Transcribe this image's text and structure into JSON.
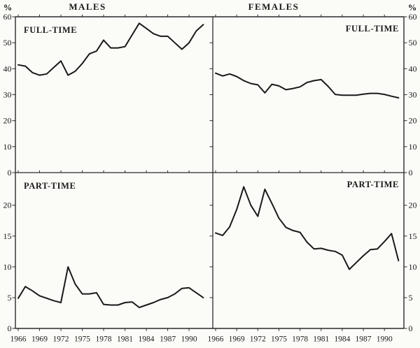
{
  "figure": {
    "unit_left": "%",
    "unit_right": "%",
    "column_titles": [
      "MALES",
      "FEMALES"
    ],
    "ink_color": "#1a1a1a",
    "axis_color": "#2b2b2b",
    "background_color": "#fbfbf8"
  },
  "chart_data": [
    {
      "id": "males-full-time",
      "type": "line",
      "column": "MALES",
      "label": "FULL-TIME",
      "label_corner": "top-left",
      "unit": "%",
      "ylim": [
        0,
        60
      ],
      "yticks": [
        0,
        10,
        20,
        30,
        40,
        50,
        60
      ],
      "xticks": [
        1966,
        1969,
        1972,
        1975,
        1978,
        1981,
        1984,
        1987,
        1990
      ],
      "years": [
        1966,
        1967,
        1968,
        1969,
        1970,
        1971,
        1972,
        1973,
        1974,
        1975,
        1976,
        1977,
        1978,
        1979,
        1980,
        1981,
        1982,
        1983,
        1984,
        1985,
        1986,
        1987,
        1988,
        1989,
        1990,
        1991,
        1992
      ],
      "values": [
        41.5,
        41,
        38.5,
        37.5,
        38,
        40.5,
        43,
        37.5,
        39,
        42,
        45.7,
        46.8,
        51,
        48,
        48,
        48.5,
        53,
        57.5,
        55.5,
        53.5,
        52.5,
        52.5,
        50,
        47.5,
        50,
        54.5,
        57
      ]
    },
    {
      "id": "females-full-time",
      "type": "line",
      "column": "FEMALES",
      "label": "FULL-TIME",
      "label_corner": "top-right",
      "unit": "%",
      "ylim": [
        0,
        60
      ],
      "yticks": [
        0,
        10,
        20,
        30,
        40,
        50,
        60
      ],
      "xticks": [
        1966,
        1969,
        1972,
        1975,
        1978,
        1981,
        1984,
        1987,
        1990
      ],
      "years": [
        1966,
        1967,
        1968,
        1969,
        1970,
        1971,
        1972,
        1973,
        1974,
        1975,
        1976,
        1977,
        1978,
        1979,
        1980,
        1981,
        1982,
        1983,
        1984,
        1985,
        1986,
        1987,
        1988,
        1989,
        1990,
        1991,
        1992
      ],
      "values": [
        38.3,
        37.2,
        38,
        37,
        35.4,
        34.3,
        33.8,
        30.7,
        34,
        33.4,
        31.9,
        32.4,
        33,
        34.7,
        35.4,
        35.8,
        33.2,
        30.1,
        29.8,
        29.8,
        29.8,
        30.2,
        30.5,
        30.5,
        30.1,
        29.4,
        28.8
      ]
    },
    {
      "id": "males-part-time",
      "type": "line",
      "column": "MALES",
      "label": "PART-TIME",
      "label_corner": "top-left",
      "unit": "%",
      "ylim": [
        0,
        25.3
      ],
      "yticks": [
        0,
        5,
        10,
        15,
        20
      ],
      "xticks": [
        1966,
        1969,
        1972,
        1975,
        1978,
        1981,
        1984,
        1987,
        1990
      ],
      "years": [
        1966,
        1967,
        1968,
        1969,
        1970,
        1971,
        1972,
        1973,
        1974,
        1975,
        1976,
        1977,
        1978,
        1979,
        1980,
        1981,
        1982,
        1983,
        1984,
        1985,
        1986,
        1987,
        1988,
        1989,
        1990,
        1991,
        1992
      ],
      "values": [
        4.9,
        6.8,
        6.1,
        5.3,
        4.9,
        4.5,
        4.2,
        10,
        7.2,
        5.6,
        5.6,
        5.8,
        3.9,
        3.8,
        3.8,
        4.2,
        4.3,
        3.4,
        3.8,
        4.2,
        4.7,
        5,
        5.6,
        6.5,
        6.6,
        5.8,
        5
      ]
    },
    {
      "id": "females-part-time",
      "type": "line",
      "column": "FEMALES",
      "label": "PART-TIME",
      "label_corner": "top-right",
      "unit": "%",
      "ylim": [
        0,
        25.3
      ],
      "yticks": [
        0,
        5,
        10,
        15,
        20
      ],
      "xticks": [
        1966,
        1969,
        1972,
        1975,
        1978,
        1981,
        1984,
        1987,
        1990
      ],
      "years": [
        1966,
        1967,
        1968,
        1969,
        1970,
        1971,
        1972,
        1973,
        1974,
        1975,
        1976,
        1977,
        1978,
        1979,
        1980,
        1981,
        1982,
        1983,
        1984,
        1985,
        1986,
        1987,
        1988,
        1989,
        1990,
        1991,
        1992
      ],
      "values": [
        15.5,
        15.1,
        16.5,
        19.3,
        23,
        20,
        18.2,
        22.6,
        20.3,
        17.9,
        16.4,
        15.9,
        15.6,
        14,
        12.9,
        13,
        12.7,
        12.5,
        11.9,
        9.6,
        10.7,
        11.8,
        12.8,
        12.9,
        14.1,
        15.4,
        11
      ]
    }
  ]
}
